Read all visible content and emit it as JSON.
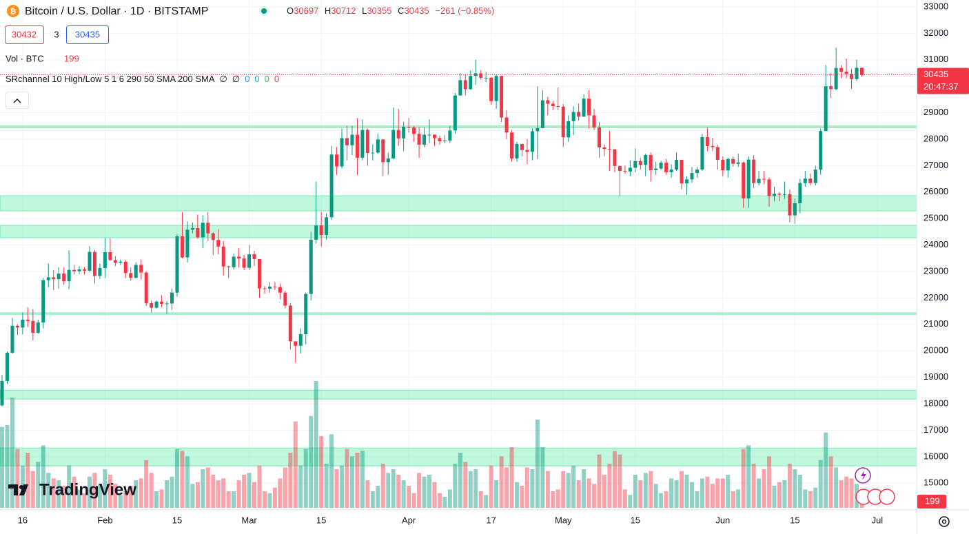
{
  "header": {
    "title": "Bitcoin / U.S. Dollar · 1D · BITSTAMP",
    "ohlc_labels": [
      "O",
      "H",
      "L",
      "C"
    ],
    "change_label": "−261 (−0.85%)"
  },
  "quote": {
    "bid": 30432,
    "spread": 3,
    "ask": 30435
  },
  "volume_label": "Vol · BTC",
  "indicator": {
    "label": "SRchannel 10 High/Low 5 1 6 290 50 SMA 200 SMA",
    "values": [
      {
        "text": "∅",
        "color": "#131722"
      },
      {
        "text": "∅",
        "color": "#131722"
      },
      {
        "text": "0",
        "color": "#2196f3"
      },
      {
        "text": "0",
        "color": "#00bcd4"
      },
      {
        "text": "0",
        "color": "#4caf50"
      },
      {
        "text": "0",
        "color": "#f23645"
      }
    ]
  },
  "countdown": "20:47:37",
  "logo": "TradingView",
  "chart_data": {
    "type": "candlestick",
    "categories": [
      "Jan 12",
      "Jan 13",
      "Jan 14",
      "Jan 15",
      "Jan 16",
      "Jan 17",
      "Jan 18",
      "Jan 19",
      "Jan 20",
      "Jan 21",
      "Jan 22",
      "Jan 23",
      "Jan 24",
      "Jan 25",
      "Jan 26",
      "Jan 27",
      "Jan 28",
      "Jan 29",
      "Jan 30",
      "Jan 31",
      "Feb 1",
      "Feb 2",
      "Feb 3",
      "Feb 4",
      "Feb 5",
      "Feb 6",
      "Feb 7",
      "Feb 8",
      "Feb 9",
      "Feb 10",
      "Feb 11",
      "Feb 12",
      "Feb 13",
      "Feb 14",
      "Feb 15",
      "Feb 16",
      "Feb 17",
      "Feb 18",
      "Feb 19",
      "Feb 20",
      "Feb 21",
      "Feb 22",
      "Feb 23",
      "Feb 24",
      "Feb 25",
      "Feb 26",
      "Feb 27",
      "Feb 28",
      "Mar 1",
      "Mar 2",
      "Mar 3",
      "Mar 4",
      "Mar 5",
      "Mar 6",
      "Mar 7",
      "Mar 8",
      "Mar 9",
      "Mar 10",
      "Mar 11",
      "Mar 12",
      "Mar 13",
      "Mar 14",
      "Mar 15",
      "Mar 16",
      "Mar 17",
      "Mar 18",
      "Mar 19",
      "Mar 20",
      "Mar 21",
      "Mar 22",
      "Mar 23",
      "Mar 24",
      "Mar 25",
      "Mar 26",
      "Mar 27",
      "Mar 28",
      "Mar 29",
      "Mar 30",
      "Mar 31",
      "Apr 1",
      "Apr 2",
      "Apr 3",
      "Apr 4",
      "Apr 5",
      "Apr 6",
      "Apr 7",
      "Apr 8",
      "Apr 9",
      "Apr 10",
      "Apr 11",
      "Apr 12",
      "Apr 13",
      "Apr 14",
      "Apr 15",
      "Apr 16",
      "Apr 17",
      "Apr 18",
      "Apr 19",
      "Apr 20",
      "Apr 21",
      "Apr 22",
      "Apr 23",
      "Apr 24",
      "Apr 25",
      "Apr 26",
      "Apr 27",
      "Apr 28",
      "Apr 29",
      "Apr 30",
      "May 1",
      "May 2",
      "May 3",
      "May 4",
      "May 5",
      "May 6",
      "May 7",
      "May 8",
      "May 9",
      "May 10",
      "May 11",
      "May 12",
      "May 13",
      "May 14",
      "May 15",
      "May 16",
      "May 17",
      "May 18",
      "May 19",
      "May 20",
      "May 21",
      "May 22",
      "May 23",
      "May 24",
      "May 25",
      "May 26",
      "May 27",
      "May 28",
      "May 29",
      "May 30",
      "May 31",
      "Jun 1",
      "Jun 2",
      "Jun 3",
      "Jun 4",
      "Jun 5",
      "Jun 6",
      "Jun 7",
      "Jun 8",
      "Jun 9",
      "Jun 10",
      "Jun 11",
      "Jun 12",
      "Jun 13",
      "Jun 14",
      "Jun 15",
      "Jun 16",
      "Jun 17",
      "Jun 18",
      "Jun 19",
      "Jun 20",
      "Jun 21",
      "Jun 22",
      "Jun 23",
      "Jun 24",
      "Jun 25",
      "Jun 26",
      "Jun 27",
      "Jun 28"
    ],
    "open": [
      17940,
      18860,
      19930,
      20950,
      20880,
      21180,
      21130,
      20680,
      21070,
      22670,
      22780,
      22710,
      22920,
      22630,
      23060,
      23010,
      23080,
      23030,
      23740,
      22830,
      23130,
      23730,
      23430,
      23330,
      23370,
      22940,
      22760,
      23250,
      22960,
      21800,
      21630,
      21860,
      21780,
      21790,
      22200,
      24330,
      23530,
      24580,
      24640,
      24290,
      24840,
      24440,
      24190,
      23940,
      23190,
      23160,
      23560,
      23490,
      23140,
      23650,
      23470,
      22360,
      22350,
      22430,
      22410,
      22200,
      21710,
      20360,
      20190,
      20630,
      22150,
      24200,
      24740,
      24380,
      25050,
      27420,
      26970,
      28040,
      27770,
      28170,
      27300,
      28350,
      27480,
      27490,
      27990,
      27130,
      27270,
      28350,
      28030,
      28470,
      28450,
      28200,
      27790,
      28170,
      28170,
      28040,
      27920,
      27950,
      28330,
      29650,
      30230,
      29890,
      30390,
      30490,
      30320,
      30320,
      29440,
      30390,
      28820,
      28250,
      27270,
      27820,
      27590,
      27520,
      28300,
      28420,
      29470,
      29340,
      29250,
      29230,
      28070,
      28680,
      29030,
      28850,
      29530,
      28900,
      28450,
      27690,
      27630,
      27620,
      26990,
      26800,
      26780,
      26920,
      27170,
      27030,
      27400,
      26830,
      26890,
      27110,
      26750,
      26850,
      27220,
      26330,
      26480,
      26720,
      26850,
      28080,
      27740,
      27700,
      27220,
      26820,
      27250,
      27070,
      27120,
      25760,
      27230,
      26340,
      26500,
      26480,
      25850,
      25940,
      25900,
      25920,
      25120,
      25580,
      26340,
      26510,
      26340,
      26850,
      28310,
      30000,
      29890,
      30690,
      30550,
      30470,
      30270,
      30697
    ],
    "high": [
      19100,
      19980,
      21250,
      21000,
      21450,
      21650,
      21580,
      21180,
      22750,
      23300,
      23050,
      23150,
      23150,
      23800,
      23250,
      23200,
      23160,
      23960,
      23810,
      23300,
      24250,
      24250,
      23580,
      23450,
      23430,
      23150,
      23350,
      23450,
      23000,
      21900,
      21900,
      22100,
      21880,
      22350,
      24400,
      25250,
      24900,
      24850,
      25150,
      25120,
      25250,
      24480,
      24600,
      24150,
      23220,
      23680,
      23880,
      23620,
      24000,
      23780,
      23470,
      22450,
      22600,
      22600,
      22540,
      22270,
      21800,
      20360,
      20850,
      22200,
      24500,
      26400,
      25250,
      25200,
      27750,
      27700,
      28400,
      28500,
      28500,
      28800,
      28750,
      28400,
      27800,
      28200,
      28000,
      27500,
      29200,
      29150,
      28650,
      28800,
      28500,
      28450,
      28450,
      28750,
      28180,
      28130,
      28150,
      28500,
      29750,
      30500,
      30450,
      30600,
      31000,
      30600,
      30550,
      30350,
      30450,
      30400,
      29100,
      28350,
      27900,
      27820,
      28000,
      28400,
      30000,
      29850,
      29600,
      29450,
      29950,
      29330,
      28900,
      29250,
      29350,
      29700,
      29850,
      29150,
      28650,
      27800,
      28300,
      27630,
      27000,
      27000,
      27200,
      27650,
      27300,
      27450,
      27500,
      27150,
      27180,
      27250,
      27050,
      27500,
      27220,
      26600,
      26950,
      26950,
      28200,
      28450,
      28050,
      27800,
      27350,
      27300,
      27350,
      27450,
      27150,
      27350,
      27400,
      26800,
      26800,
      26550,
      26200,
      26000,
      26400,
      26100,
      25750,
      26500,
      26800,
      26700,
      27000,
      28400,
      30800,
      30500,
      31450,
      30800,
      31050,
      30650,
      31000,
      30712
    ],
    "low": [
      17900,
      18750,
      19890,
      20600,
      20620,
      20900,
      20400,
      20650,
      20850,
      22400,
      22300,
      22350,
      22500,
      22330,
      22880,
      22900,
      22880,
      22980,
      22550,
      22720,
      22750,
      23400,
      23200,
      23250,
      22750,
      22650,
      22750,
      22700,
      21700,
      21450,
      21600,
      21650,
      21400,
      21550,
      22050,
      23500,
      23340,
      24440,
      24230,
      23880,
      24150,
      23620,
      23650,
      22850,
      22750,
      23070,
      23150,
      23050,
      23050,
      23200,
      22000,
      22160,
      22200,
      22300,
      21950,
      21600,
      20050,
      19550,
      19900,
      20250,
      21900,
      24050,
      23950,
      24200,
      24950,
      26650,
      26900,
      27200,
      27400,
      26650,
      27200,
      27000,
      27200,
      27450,
      26600,
      26650,
      27250,
      27750,
      27550,
      28250,
      27900,
      27300,
      27700,
      27850,
      27750,
      27800,
      27850,
      27850,
      28200,
      29650,
      29650,
      29870,
      30050,
      30250,
      30150,
      29300,
      29150,
      28650,
      28000,
      27150,
      27150,
      27350,
      27050,
      27200,
      27250,
      28400,
      28900,
      29100,
      29100,
      27700,
      27900,
      28150,
      28700,
      28850,
      28400,
      28350,
      27300,
      27350,
      26800,
      26750,
      25850,
      26700,
      26600,
      26750,
      26850,
      26600,
      26400,
      26650,
      26850,
      26650,
      26550,
      26800,
      26100,
      25900,
      26350,
      26550,
      26800,
      27550,
      27550,
      26850,
      26600,
      26550,
      26950,
      26950,
      25400,
      25400,
      26150,
      26250,
      26300,
      25450,
      25650,
      25650,
      25750,
      24850,
      24800,
      25200,
      26200,
      26250,
      26250,
      26650,
      28300,
      29550,
      29850,
      30300,
      30300,
      29900,
      30200,
      30355
    ],
    "close": [
      18860,
      19930,
      20950,
      20880,
      21180,
      21130,
      20680,
      21070,
      22670,
      22780,
      22710,
      22920,
      22630,
      23060,
      23010,
      23080,
      23030,
      23740,
      22830,
      23130,
      23730,
      23430,
      23330,
      23370,
      22940,
      22760,
      23250,
      22960,
      21800,
      21630,
      21860,
      21780,
      21790,
      22200,
      24330,
      23530,
      24580,
      24640,
      24290,
      24840,
      24440,
      24190,
      23940,
      23190,
      23160,
      23560,
      23490,
      23140,
      23650,
      23470,
      22360,
      22350,
      22430,
      22410,
      22200,
      21710,
      20360,
      20190,
      20630,
      22150,
      24200,
      24740,
      24380,
      25050,
      27420,
      26970,
      28040,
      27770,
      28170,
      27300,
      28350,
      27480,
      27490,
      27990,
      27130,
      27270,
      28350,
      28030,
      28470,
      28450,
      28200,
      27790,
      28170,
      28170,
      28040,
      27920,
      27950,
      28330,
      29650,
      30230,
      29890,
      30390,
      30490,
      30320,
      30320,
      29440,
      30390,
      28820,
      28250,
      27270,
      27820,
      27590,
      27520,
      28300,
      28420,
      29470,
      29340,
      29250,
      29230,
      28070,
      28680,
      29030,
      28850,
      29530,
      28900,
      28450,
      27690,
      27630,
      27620,
      26990,
      26800,
      26780,
      26920,
      27170,
      27030,
      27400,
      26830,
      26890,
      27110,
      26750,
      26850,
      27220,
      26330,
      26480,
      26720,
      26850,
      28080,
      27740,
      27700,
      27220,
      26820,
      27250,
      27070,
      27120,
      25760,
      27230,
      26340,
      26500,
      26480,
      25850,
      25940,
      25900,
      25920,
      25120,
      25580,
      26340,
      26510,
      26340,
      26850,
      28310,
      30000,
      29890,
      30690,
      30550,
      30470,
      30270,
      30697,
      30435
    ],
    "volume": [
      4400,
      4500,
      6000,
      3200,
      2300,
      3000,
      2000,
      2500,
      3400,
      1900,
      1600,
      1500,
      1200,
      2300,
      1700,
      1000,
      800,
      1700,
      1900,
      1300,
      2100,
      1800,
      1300,
      700,
      900,
      1200,
      1500,
      1600,
      2600,
      1900,
      900,
      1000,
      1500,
      1700,
      3200,
      3100,
      2800,
      1300,
      1400,
      2100,
      2200,
      1800,
      1500,
      1600,
      900,
      900,
      1500,
      1800,
      1900,
      1400,
      2300,
      900,
      800,
      1100,
      1600,
      2200,
      3000,
      4700,
      2300,
      3200,
      5000,
      6900,
      3900,
      2400,
      4000,
      2100,
      2300,
      3200,
      2800,
      3000,
      3100,
      1500,
      900,
      1200,
      2400,
      1900,
      2100,
      1800,
      1500,
      1200,
      800,
      1900,
      1700,
      1800,
      1400,
      800,
      600,
      1000,
      2400,
      3000,
      2500,
      2000,
      2100,
      900,
      700,
      2300,
      1500,
      2800,
      2200,
      3300,
      1400,
      1200,
      2200,
      2100,
      4800,
      3300,
      2000,
      900,
      1000,
      2000,
      1900,
      2300,
      1500,
      2100,
      1600,
      1300,
      2900,
      1800,
      2400,
      3100,
      2900,
      1000,
      700,
      1800,
      1500,
      1900,
      2000,
      1300,
      800,
      900,
      1600,
      1500,
      2000,
      1800,
      1400,
      900,
      1600,
      1700,
      1300,
      1600,
      1600,
      1800,
      900,
      1000,
      3200,
      3400,
      2400,
      1600,
      2100,
      2800,
      1200,
      1400,
      1500,
      2400,
      2100,
      1800,
      1000,
      900,
      1100,
      2600,
      4100,
      2800,
      2200,
      1500,
      1700,
      1600,
      1300,
      199
    ],
    "up_color": "#089981",
    "down_color": "#f23645",
    "ylim": [
      13990,
      33260
    ],
    "yticks": [
      15000,
      16000,
      17000,
      18000,
      19000,
      20000,
      21000,
      22000,
      23000,
      24000,
      25000,
      26000,
      27000,
      28000,
      29000,
      30000,
      31000,
      32000,
      33000
    ],
    "volume_lim": [
      0,
      7500
    ],
    "xticks": [
      {
        "value": "Jan 16",
        "label": "16"
      },
      {
        "value": "Feb 1",
        "label": "Feb"
      },
      {
        "value": "Feb 15",
        "label": "15"
      },
      {
        "value": "Mar 1",
        "label": "Mar"
      },
      {
        "value": "Mar 15",
        "label": "15"
      },
      {
        "value": "Apr 1",
        "label": "Apr"
      },
      {
        "value": "Apr 17",
        "label": "17"
      },
      {
        "value": "May 1",
        "label": "May"
      },
      {
        "value": "May 15",
        "label": "15"
      },
      {
        "value": "Jun 1",
        "label": "Jun"
      },
      {
        "value": "Jun 15",
        "label": "15"
      },
      {
        "value": "Jul 1",
        "label": "Jul"
      }
    ],
    "grid": true,
    "sr_zones": [
      {
        "low": 28430,
        "high": 28500
      },
      {
        "low": 25290,
        "high": 25863
      },
      {
        "low": 24274,
        "high": 24743
      },
      {
        "low": 21380,
        "high": 21440
      },
      {
        "low": 18178,
        "high": 18517
      },
      {
        "low": 15652,
        "high": 16330
      }
    ],
    "zone_color": "#2ee88f"
  }
}
